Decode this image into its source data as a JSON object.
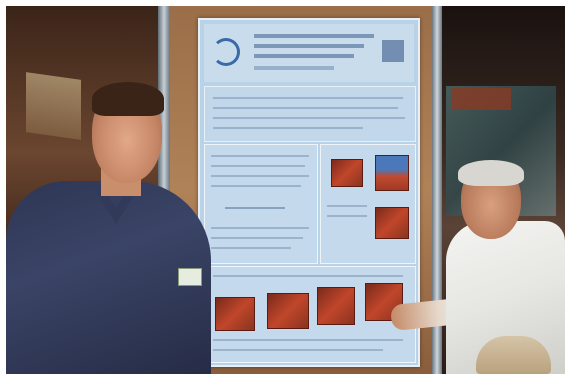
{
  "image": {
    "kind": "photograph",
    "scene": "poster-session",
    "colors": {
      "frame": "#ffffff",
      "poster_panel": "#b8d2e8",
      "board": "#a8784f",
      "figures": "#b8402a"
    }
  }
}
